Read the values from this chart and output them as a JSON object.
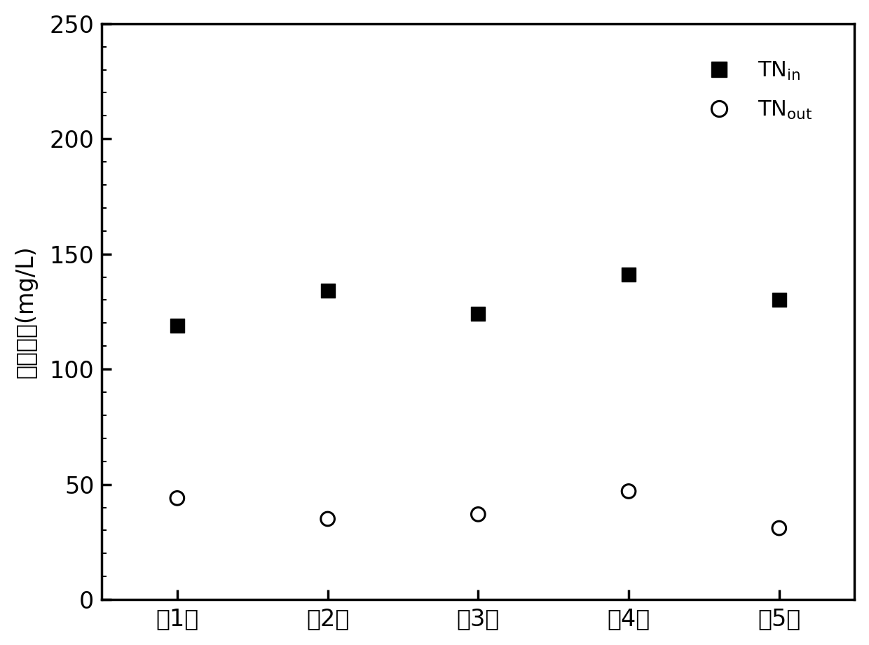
{
  "x_labels": [
    "第1天",
    "第2天",
    "第3天",
    "第4天",
    "第5天"
  ],
  "x_positions": [
    1,
    2,
    3,
    4,
    5
  ],
  "tn_in": [
    119,
    134,
    124,
    141,
    130
  ],
  "tn_out": [
    44,
    35,
    37,
    47,
    31
  ],
  "ylabel": "总氮浓度(mg/L)",
  "ylim": [
    0,
    250
  ],
  "yticks": [
    0,
    50,
    100,
    150,
    200,
    250
  ],
  "xlim": [
    0.5,
    5.5
  ],
  "bg_color": "#ffffff",
  "marker_in_color": "#000000",
  "marker_out_color": "#000000",
  "marker_in_size": 200,
  "marker_out_size": 200
}
